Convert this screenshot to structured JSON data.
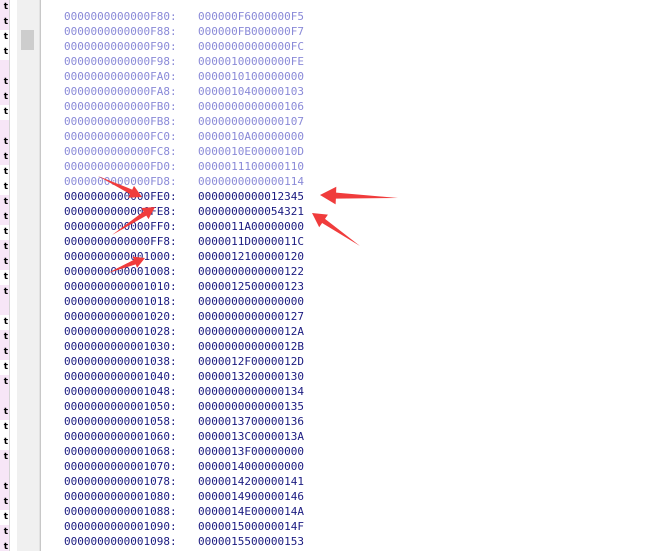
{
  "left_strip": {
    "rows": [
      {
        "text": "t",
        "pink": true
      },
      {
        "text": "t",
        "pink": true
      },
      {
        "text": "t",
        "pink": false
      },
      {
        "text": "t",
        "pink": false
      },
      {
        "text": "",
        "pink": true
      },
      {
        "text": "t",
        "pink": true
      },
      {
        "text": "t",
        "pink": true
      },
      {
        "text": "t",
        "pink": false
      },
      {
        "text": "",
        "pink": true
      },
      {
        "text": "t",
        "pink": true
      },
      {
        "text": "t",
        "pink": true
      },
      {
        "text": "t",
        "pink": false
      },
      {
        "text": "t",
        "pink": false
      },
      {
        "text": "t",
        "pink": true
      },
      {
        "text": "t",
        "pink": true
      },
      {
        "text": "t",
        "pink": false
      },
      {
        "text": "t",
        "pink": true
      },
      {
        "text": "t",
        "pink": true
      },
      {
        "text": "t",
        "pink": false
      },
      {
        "text": "t",
        "pink": true
      },
      {
        "text": "",
        "pink": true
      },
      {
        "text": "t",
        "pink": false
      },
      {
        "text": "t",
        "pink": true
      },
      {
        "text": "t",
        "pink": true
      },
      {
        "text": "t",
        "pink": false
      },
      {
        "text": "t",
        "pink": true
      },
      {
        "text": "",
        "pink": true
      },
      {
        "text": "t",
        "pink": true
      },
      {
        "text": "t",
        "pink": false
      },
      {
        "text": "t",
        "pink": false
      },
      {
        "text": "t",
        "pink": true
      },
      {
        "text": "",
        "pink": true
      },
      {
        "text": "t",
        "pink": true
      },
      {
        "text": "t",
        "pink": true
      },
      {
        "text": "t",
        "pink": false
      },
      {
        "text": "t",
        "pink": true
      },
      {
        "text": "t",
        "pink": true
      }
    ]
  },
  "memory": {
    "rows": [
      {
        "addr": "0000000000000F80:",
        "value": "000000F6000000F5",
        "dim": true
      },
      {
        "addr": "0000000000000F88:",
        "value": "000000FB000000F7",
        "dim": true
      },
      {
        "addr": "0000000000000F90:",
        "value": "00000000000000FC",
        "dim": true
      },
      {
        "addr": "0000000000000F98:",
        "value": "00000100000000FE",
        "dim": true
      },
      {
        "addr": "0000000000000FA0:",
        "value": "0000010100000000",
        "dim": true
      },
      {
        "addr": "0000000000000FA8:",
        "value": "0000010400000103",
        "dim": true
      },
      {
        "addr": "0000000000000FB0:",
        "value": "0000000000000106",
        "dim": true
      },
      {
        "addr": "0000000000000FB8:",
        "value": "0000000000000107",
        "dim": true
      },
      {
        "addr": "0000000000000FC0:",
        "value": "0000010A00000000",
        "dim": true
      },
      {
        "addr": "0000000000000FC8:",
        "value": "0000010E0000010D",
        "dim": true
      },
      {
        "addr": "0000000000000FD0:",
        "value": "0000011100000110",
        "dim": true
      },
      {
        "addr": "0000000000000FD8:",
        "value": "0000000000000114",
        "dim": true
      },
      {
        "addr": "0000000000000FE0:",
        "value": "0000000000012345",
        "dim": false
      },
      {
        "addr": "0000000000000FE8:",
        "value": "0000000000054321",
        "dim": false
      },
      {
        "addr": "0000000000000FF0:",
        "value": "0000011A00000000",
        "dim": false
      },
      {
        "addr": "0000000000000FF8:",
        "value": "0000011D0000011C",
        "dim": false
      },
      {
        "addr": "0000000000001000:",
        "value": "0000012100000120",
        "dim": false
      },
      {
        "addr": "0000000000001008:",
        "value": "0000000000000122",
        "dim": false
      },
      {
        "addr": "0000000000001010:",
        "value": "0000012500000123",
        "dim": false
      },
      {
        "addr": "0000000000001018:",
        "value": "0000000000000000",
        "dim": false
      },
      {
        "addr": "0000000000001020:",
        "value": "0000000000000127",
        "dim": false
      },
      {
        "addr": "0000000000001028:",
        "value": "000000000000012A",
        "dim": false
      },
      {
        "addr": "0000000000001030:",
        "value": "000000000000012B",
        "dim": false
      },
      {
        "addr": "0000000000001038:",
        "value": "0000012F0000012D",
        "dim": false
      },
      {
        "addr": "0000000000001040:",
        "value": "0000013200000130",
        "dim": false
      },
      {
        "addr": "0000000000001048:",
        "value": "0000000000000134",
        "dim": false
      },
      {
        "addr": "0000000000001050:",
        "value": "0000000000000135",
        "dim": false
      },
      {
        "addr": "0000000000001058:",
        "value": "0000013700000136",
        "dim": false
      },
      {
        "addr": "0000000000001060:",
        "value": "0000013C0000013A",
        "dim": false
      },
      {
        "addr": "0000000000001068:",
        "value": "0000013F00000000",
        "dim": false
      },
      {
        "addr": "0000000000001070:",
        "value": "0000014000000000",
        "dim": false
      },
      {
        "addr": "0000000000001078:",
        "value": "0000014200000141",
        "dim": false
      },
      {
        "addr": "0000000000001080:",
        "value": "0000014900000146",
        "dim": false
      },
      {
        "addr": "0000000000001088:",
        "value": "0000014E0000014A",
        "dim": false
      },
      {
        "addr": "0000000000001090:",
        "value": "000001500000014F",
        "dim": false
      },
      {
        "addr": "0000000000001098:",
        "value": "0000015500000153",
        "dim": false
      }
    ]
  },
  "colors": {
    "dim_text": "#8a8ad8",
    "dark_text": "#1a1a80",
    "annotation_arrow": "#f03c3c"
  }
}
